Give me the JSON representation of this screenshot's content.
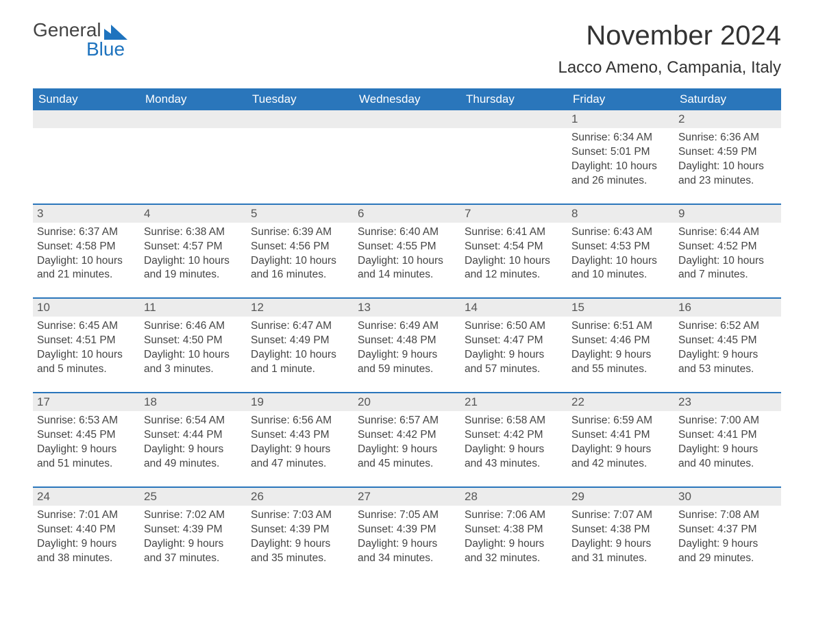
{
  "logo": {
    "text_top": "General",
    "text_bottom": "Blue"
  },
  "title": "November 2024",
  "location": "Lacco Ameno, Campania, Italy",
  "colors": {
    "header_bg": "#2a76bb",
    "header_text": "#ffffff",
    "daynum_bg": "#ececec",
    "daynum_border": "#2a76bb",
    "body_text": "#444444",
    "logo_blue": "#1e73be",
    "background": "#ffffff"
  },
  "font": {
    "family": "Arial, Helvetica, sans-serif",
    "title_size_pt": 30,
    "location_size_pt": 18,
    "body_size_pt": 12
  },
  "days_of_week": [
    "Sunday",
    "Monday",
    "Tuesday",
    "Wednesday",
    "Thursday",
    "Friday",
    "Saturday"
  ],
  "weeks": [
    [
      {
        "day": null
      },
      {
        "day": null
      },
      {
        "day": null
      },
      {
        "day": null
      },
      {
        "day": null
      },
      {
        "day": 1,
        "sunrise": "Sunrise: 6:34 AM",
        "sunset": "Sunset: 5:01 PM",
        "dl1": "Daylight: 10 hours",
        "dl2": "and 26 minutes."
      },
      {
        "day": 2,
        "sunrise": "Sunrise: 6:36 AM",
        "sunset": "Sunset: 4:59 PM",
        "dl1": "Daylight: 10 hours",
        "dl2": "and 23 minutes."
      }
    ],
    [
      {
        "day": 3,
        "sunrise": "Sunrise: 6:37 AM",
        "sunset": "Sunset: 4:58 PM",
        "dl1": "Daylight: 10 hours",
        "dl2": "and 21 minutes."
      },
      {
        "day": 4,
        "sunrise": "Sunrise: 6:38 AM",
        "sunset": "Sunset: 4:57 PM",
        "dl1": "Daylight: 10 hours",
        "dl2": "and 19 minutes."
      },
      {
        "day": 5,
        "sunrise": "Sunrise: 6:39 AM",
        "sunset": "Sunset: 4:56 PM",
        "dl1": "Daylight: 10 hours",
        "dl2": "and 16 minutes."
      },
      {
        "day": 6,
        "sunrise": "Sunrise: 6:40 AM",
        "sunset": "Sunset: 4:55 PM",
        "dl1": "Daylight: 10 hours",
        "dl2": "and 14 minutes."
      },
      {
        "day": 7,
        "sunrise": "Sunrise: 6:41 AM",
        "sunset": "Sunset: 4:54 PM",
        "dl1": "Daylight: 10 hours",
        "dl2": "and 12 minutes."
      },
      {
        "day": 8,
        "sunrise": "Sunrise: 6:43 AM",
        "sunset": "Sunset: 4:53 PM",
        "dl1": "Daylight: 10 hours",
        "dl2": "and 10 minutes."
      },
      {
        "day": 9,
        "sunrise": "Sunrise: 6:44 AM",
        "sunset": "Sunset: 4:52 PM",
        "dl1": "Daylight: 10 hours",
        "dl2": "and 7 minutes."
      }
    ],
    [
      {
        "day": 10,
        "sunrise": "Sunrise: 6:45 AM",
        "sunset": "Sunset: 4:51 PM",
        "dl1": "Daylight: 10 hours",
        "dl2": "and 5 minutes."
      },
      {
        "day": 11,
        "sunrise": "Sunrise: 6:46 AM",
        "sunset": "Sunset: 4:50 PM",
        "dl1": "Daylight: 10 hours",
        "dl2": "and 3 minutes."
      },
      {
        "day": 12,
        "sunrise": "Sunrise: 6:47 AM",
        "sunset": "Sunset: 4:49 PM",
        "dl1": "Daylight: 10 hours",
        "dl2": "and 1 minute."
      },
      {
        "day": 13,
        "sunrise": "Sunrise: 6:49 AM",
        "sunset": "Sunset: 4:48 PM",
        "dl1": "Daylight: 9 hours",
        "dl2": "and 59 minutes."
      },
      {
        "day": 14,
        "sunrise": "Sunrise: 6:50 AM",
        "sunset": "Sunset: 4:47 PM",
        "dl1": "Daylight: 9 hours",
        "dl2": "and 57 minutes."
      },
      {
        "day": 15,
        "sunrise": "Sunrise: 6:51 AM",
        "sunset": "Sunset: 4:46 PM",
        "dl1": "Daylight: 9 hours",
        "dl2": "and 55 minutes."
      },
      {
        "day": 16,
        "sunrise": "Sunrise: 6:52 AM",
        "sunset": "Sunset: 4:45 PM",
        "dl1": "Daylight: 9 hours",
        "dl2": "and 53 minutes."
      }
    ],
    [
      {
        "day": 17,
        "sunrise": "Sunrise: 6:53 AM",
        "sunset": "Sunset: 4:45 PM",
        "dl1": "Daylight: 9 hours",
        "dl2": "and 51 minutes."
      },
      {
        "day": 18,
        "sunrise": "Sunrise: 6:54 AM",
        "sunset": "Sunset: 4:44 PM",
        "dl1": "Daylight: 9 hours",
        "dl2": "and 49 minutes."
      },
      {
        "day": 19,
        "sunrise": "Sunrise: 6:56 AM",
        "sunset": "Sunset: 4:43 PM",
        "dl1": "Daylight: 9 hours",
        "dl2": "and 47 minutes."
      },
      {
        "day": 20,
        "sunrise": "Sunrise: 6:57 AM",
        "sunset": "Sunset: 4:42 PM",
        "dl1": "Daylight: 9 hours",
        "dl2": "and 45 minutes."
      },
      {
        "day": 21,
        "sunrise": "Sunrise: 6:58 AM",
        "sunset": "Sunset: 4:42 PM",
        "dl1": "Daylight: 9 hours",
        "dl2": "and 43 minutes."
      },
      {
        "day": 22,
        "sunrise": "Sunrise: 6:59 AM",
        "sunset": "Sunset: 4:41 PM",
        "dl1": "Daylight: 9 hours",
        "dl2": "and 42 minutes."
      },
      {
        "day": 23,
        "sunrise": "Sunrise: 7:00 AM",
        "sunset": "Sunset: 4:41 PM",
        "dl1": "Daylight: 9 hours",
        "dl2": "and 40 minutes."
      }
    ],
    [
      {
        "day": 24,
        "sunrise": "Sunrise: 7:01 AM",
        "sunset": "Sunset: 4:40 PM",
        "dl1": "Daylight: 9 hours",
        "dl2": "and 38 minutes."
      },
      {
        "day": 25,
        "sunrise": "Sunrise: 7:02 AM",
        "sunset": "Sunset: 4:39 PM",
        "dl1": "Daylight: 9 hours",
        "dl2": "and 37 minutes."
      },
      {
        "day": 26,
        "sunrise": "Sunrise: 7:03 AM",
        "sunset": "Sunset: 4:39 PM",
        "dl1": "Daylight: 9 hours",
        "dl2": "and 35 minutes."
      },
      {
        "day": 27,
        "sunrise": "Sunrise: 7:05 AM",
        "sunset": "Sunset: 4:39 PM",
        "dl1": "Daylight: 9 hours",
        "dl2": "and 34 minutes."
      },
      {
        "day": 28,
        "sunrise": "Sunrise: 7:06 AM",
        "sunset": "Sunset: 4:38 PM",
        "dl1": "Daylight: 9 hours",
        "dl2": "and 32 minutes."
      },
      {
        "day": 29,
        "sunrise": "Sunrise: 7:07 AM",
        "sunset": "Sunset: 4:38 PM",
        "dl1": "Daylight: 9 hours",
        "dl2": "and 31 minutes."
      },
      {
        "day": 30,
        "sunrise": "Sunrise: 7:08 AM",
        "sunset": "Sunset: 4:37 PM",
        "dl1": "Daylight: 9 hours",
        "dl2": "and 29 minutes."
      }
    ]
  ]
}
